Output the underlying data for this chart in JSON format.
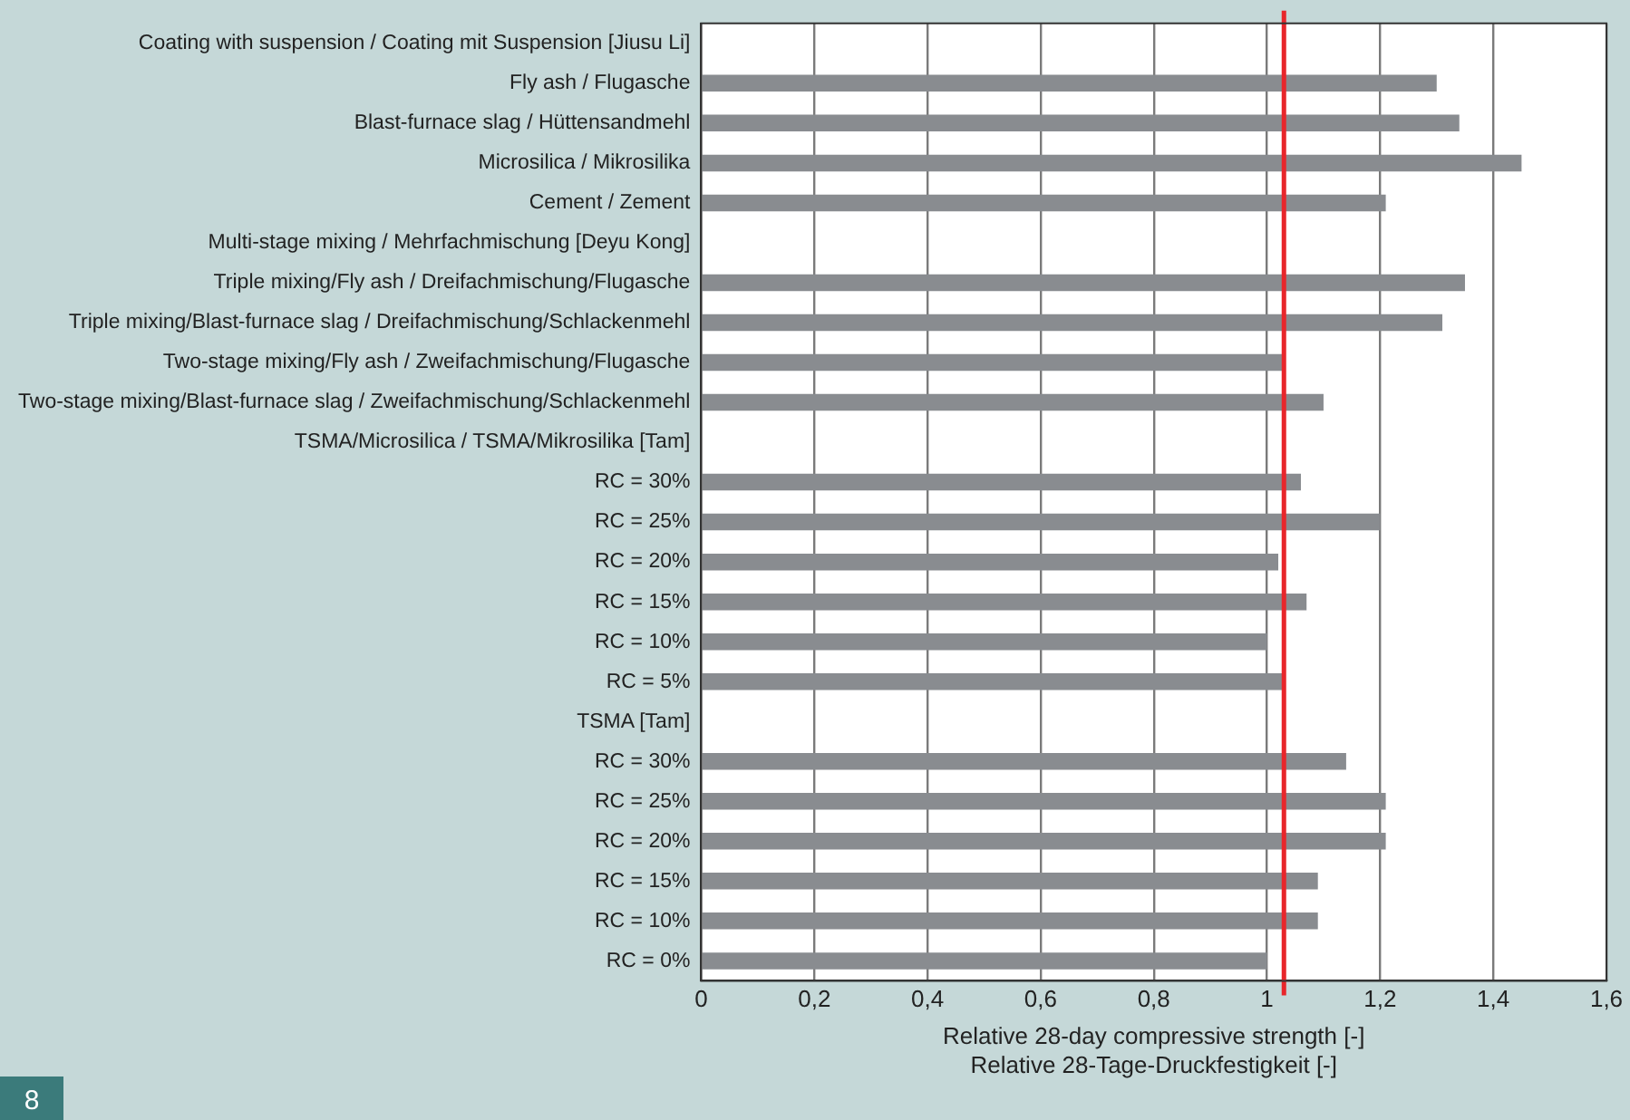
{
  "chart_data": {
    "type": "bar",
    "orientation": "horizontal",
    "categories": [
      "Coating with suspension / Coating mit Suspension [Jiusu Li]",
      "Fly ash / Flugasche",
      "Blast-furnace slag / Hüttensandmehl",
      "Microsilica / Mikrosilika",
      "Cement / Zement",
      "Multi-stage mixing / Mehrfachmischung [Deyu Kong]",
      "Triple mixing/Fly ash / Dreifachmischung/Flugasche",
      "Triple mixing/Blast-furnace slag / Dreifachmischung/Schlackenmehl",
      "Two-stage mixing/Fly ash / Zweifachmischung/Flugasche",
      "Two-stage mixing/Blast-furnace slag / Zweifachmischung/Schlackenmehl",
      "TSMA/Microsilica / TSMA/Mikrosilika [Tam]",
      "RC = 30%",
      "RC = 25%",
      "RC = 20%",
      "RC = 15%",
      "RC = 10%",
      "RC = 5%",
      "TSMA [Tam]",
      "RC = 30%",
      "RC = 25%",
      "RC = 20%",
      "RC = 15%",
      "RC = 10%",
      "RC = 0%"
    ],
    "values": [
      null,
      1.3,
      1.34,
      1.45,
      1.21,
      null,
      1.35,
      1.31,
      1.03,
      1.1,
      null,
      1.06,
      1.2,
      1.02,
      1.07,
      1.0,
      1.03,
      null,
      1.14,
      1.21,
      1.21,
      1.09,
      1.09,
      1.0
    ],
    "color": "#898c90",
    "xlim": [
      0,
      1.6
    ],
    "xticks": [
      0,
      {
        "value": 0.2,
        "label": "0,2"
      },
      {
        "value": 0.4,
        "label": "0,4"
      },
      {
        "value": 0.6,
        "label": "0,6"
      },
      {
        "value": 0.8,
        "label": "0,8"
      },
      1,
      {
        "value": 1.2,
        "label": "1,2"
      },
      {
        "value": 1.4,
        "label": "1,4"
      },
      {
        "value": 1.6,
        "label": "1,6"
      }
    ],
    "xlabel": "Relative 28-day compressive strength [-]\nRelative 28-Tage-Druckfestigkeit [-]",
    "grid": "x",
    "legend": false,
    "ref_lines": [
      {
        "axis": "x",
        "value": 1.03,
        "color": "#e8262b"
      }
    ],
    "annotations": [
      "8"
    ]
  }
}
